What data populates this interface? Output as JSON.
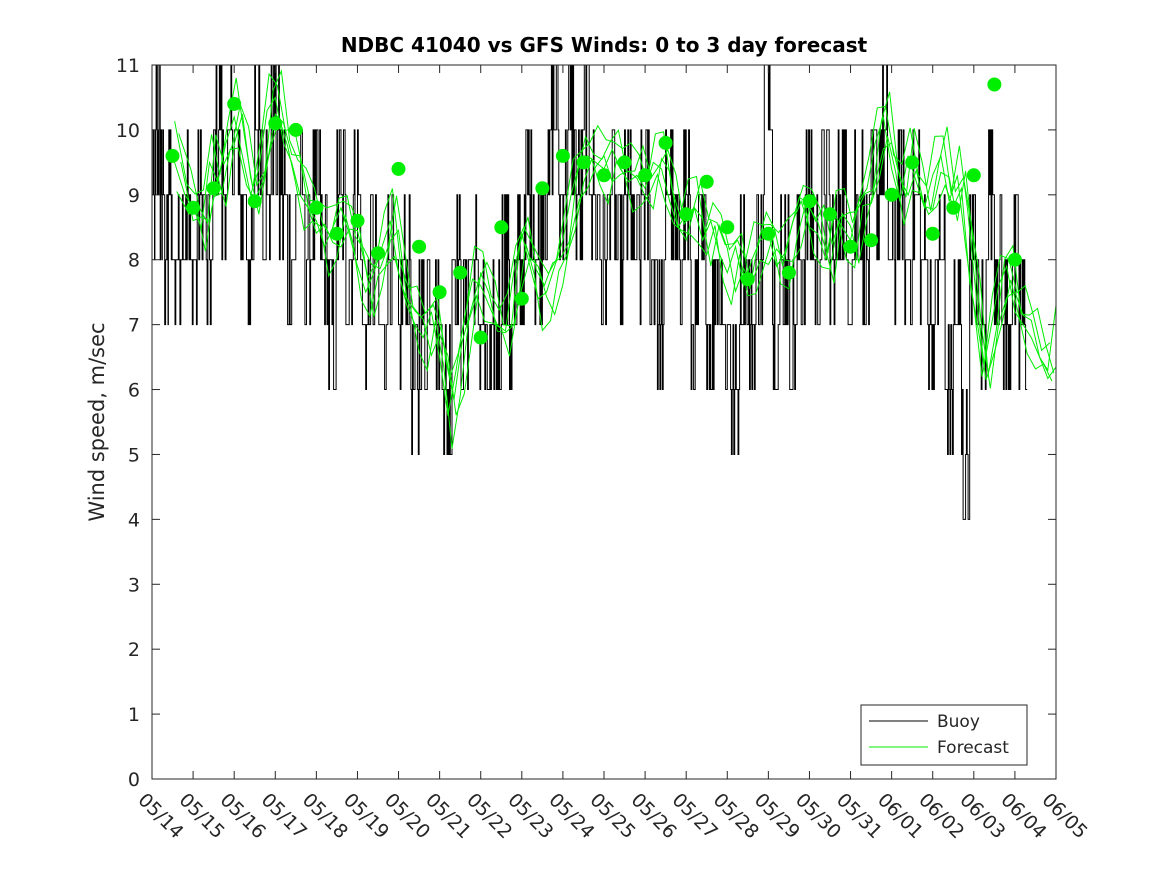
{
  "chart_data": {
    "type": "line",
    "title": "NDBC 41040 vs GFS Winds: 0 to 3 day forecast",
    "xlabel": "",
    "ylabel": "Wind speed, m/sec",
    "xlim": [
      0,
      22
    ],
    "ylim": [
      0,
      11
    ],
    "yticks": [
      0,
      1,
      2,
      3,
      4,
      5,
      6,
      7,
      8,
      9,
      10,
      11
    ],
    "xtick_labels": [
      "05/14",
      "05/15",
      "05/16",
      "05/17",
      "05/18",
      "05/19",
      "05/20",
      "05/21",
      "05/22",
      "05/23",
      "05/24",
      "05/25",
      "05/26",
      "05/27",
      "05/28",
      "05/29",
      "05/30",
      "05/31",
      "06/01",
      "06/02",
      "06/03",
      "06/04",
      "06/05"
    ],
    "legend": {
      "position": "bottom-right",
      "entries": [
        "Buoy",
        "Forecast"
      ]
    },
    "colors": {
      "buoy": "#000000",
      "forecast": "#00ee00",
      "markers": "#00ee00"
    },
    "series": [
      {
        "name": "Buoy",
        "style": "black-step",
        "x": [
          0,
          0.1,
          0.2,
          0.3,
          0.4,
          0.5,
          0.7,
          0.9,
          1.1,
          1.3,
          1.5,
          1.7,
          1.9,
          2.1,
          2.3,
          2.5,
          2.7,
          2.9,
          3.1,
          3.3,
          3.5,
          3.7,
          3.9,
          4.1,
          4.3,
          4.5,
          4.7,
          4.9,
          5.1,
          5.3,
          5.5,
          5.7,
          5.9,
          6.1,
          6.3,
          6.5,
          6.7,
          6.9,
          7.1,
          7.3,
          7.5,
          7.7,
          7.9,
          8.1,
          8.3,
          8.5,
          8.7,
          8.9,
          9.1,
          9.3,
          9.5,
          9.7,
          9.9,
          10.1,
          10.3,
          10.5,
          10.7,
          10.9,
          11.1,
          11.3,
          11.5,
          11.7,
          11.9,
          12.1,
          12.3,
          12.5,
          12.7,
          12.9,
          13.1,
          13.3,
          13.5,
          13.7,
          13.9,
          14.1,
          14.3,
          14.5,
          14.7,
          14.9,
          15.1,
          15.3,
          15.5,
          15.7,
          15.9,
          16.1,
          16.3,
          16.5,
          16.7,
          16.9,
          17.1,
          17.3,
          17.5,
          17.7,
          17.9,
          18.1,
          18.3,
          18.5,
          18.7,
          18.9,
          19.1,
          19.3,
          19.5,
          19.7,
          19.9,
          20.1,
          20.3,
          20.5,
          20.7,
          20.9,
          21.1,
          21.3
        ],
        "values": [
          9,
          10,
          9,
          8,
          9,
          8,
          9,
          8,
          9,
          8,
          10,
          9,
          10,
          9,
          8,
          10,
          9,
          10,
          9,
          8,
          9,
          8,
          9,
          8,
          7,
          9,
          8,
          9,
          7,
          8,
          7,
          8,
          7,
          8,
          6,
          7,
          8,
          7,
          6,
          8,
          7,
          8,
          7,
          6,
          7,
          8,
          7,
          8,
          9,
          8,
          9,
          10,
          9,
          10,
          9,
          10,
          9,
          8,
          9,
          8,
          9,
          8,
          9,
          8,
          7,
          9,
          8,
          9,
          7,
          8,
          7,
          8,
          7,
          6,
          8,
          7,
          8,
          11,
          7,
          8,
          7,
          8,
          9,
          8,
          9,
          8,
          9,
          8,
          9,
          8,
          9,
          10,
          8,
          9,
          8,
          9,
          8,
          7,
          8,
          6,
          7,
          5,
          8,
          7,
          9,
          8,
          7,
          8,
          7,
          7
        ]
      },
      {
        "name": "Forecast",
        "style": "green-lines",
        "x": [
          0.5,
          0.8,
          1.0,
          1.2,
          1.4,
          1.6,
          1.8,
          2.0,
          2.2,
          2.4,
          2.6,
          2.8,
          3.0,
          3.2,
          3.4,
          3.6,
          3.8,
          4.0,
          4.2,
          4.4,
          4.6,
          4.8,
          5.0,
          5.2,
          5.4,
          5.6,
          5.8,
          6.0,
          6.2,
          6.4,
          6.6,
          6.8,
          7.0,
          7.2,
          7.4,
          7.6,
          7.8,
          8.0,
          8.2,
          8.4,
          8.6,
          8.8,
          9.0,
          9.2,
          9.4,
          9.6,
          9.8,
          10.0,
          10.2,
          10.4,
          10.6,
          10.8,
          11.0,
          11.2,
          11.4,
          11.6,
          11.8,
          12.0,
          12.2,
          12.4,
          12.6,
          12.8,
          13.0,
          13.2,
          13.4,
          13.6,
          13.8,
          14.0,
          14.2,
          14.4,
          14.6,
          14.8,
          15.0,
          15.2,
          15.4,
          15.6,
          15.8,
          16.0,
          16.2,
          16.4,
          16.6,
          16.8,
          17.0,
          17.2,
          17.4,
          17.6,
          17.8,
          18.0,
          18.2,
          18.4,
          18.6,
          18.8,
          19.0,
          19.2,
          19.4,
          19.6,
          19.8,
          20.0,
          20.2,
          20.4,
          20.6,
          20.8,
          21.0,
          21.2,
          21.4,
          21.6,
          21.8,
          22.0
        ],
        "values": [
          9.6,
          9.0,
          8.8,
          8.5,
          9.5,
          9.2,
          9.8,
          10.2,
          9.6,
          9.0,
          9.4,
          10.3,
          10.5,
          9.8,
          9.5,
          9.0,
          8.8,
          8.6,
          8.2,
          8.5,
          8.8,
          8.4,
          7.9,
          7.5,
          7.8,
          8.2,
          8.6,
          7.8,
          7.3,
          7.0,
          6.8,
          7.2,
          6.5,
          5.6,
          6.3,
          7.1,
          7.7,
          7.6,
          7.3,
          7.0,
          6.9,
          7.8,
          8.4,
          7.9,
          7.4,
          7.5,
          7.9,
          8.3,
          9.0,
          9.5,
          9.6,
          9.5,
          9.4,
          9.7,
          9.4,
          9.2,
          9.3,
          9.1,
          9.5,
          9.4,
          8.9,
          8.5,
          8.7,
          8.8,
          8.3,
          8.6,
          8.1,
          7.8,
          8.2,
          7.6,
          8.0,
          8.3,
          8.4,
          7.9,
          8.1,
          8.6,
          8.9,
          8.5,
          8.4,
          8.0,
          8.7,
          8.5,
          8.3,
          8.9,
          9.1,
          9.8,
          10.2,
          9.4,
          8.9,
          9.6,
          9.2,
          8.8,
          9.3,
          9.6,
          8.9,
          9.3,
          8.2,
          7.3,
          6.2,
          6.9,
          7.6,
          7.9,
          7.2,
          7.0,
          6.8,
          6.5,
          6.3,
          7.3
        ]
      },
      {
        "name": "",
        "style": "green-markers",
        "x": [
          0.5,
          1.0,
          1.5,
          2.0,
          2.5,
          3.0,
          3.5,
          4.0,
          4.5,
          5.0,
          5.5,
          6.0,
          6.5,
          7.0,
          7.5,
          8.0,
          8.5,
          9.0,
          9.5,
          10.0,
          10.5,
          11.0,
          11.5,
          12.0,
          12.5,
          13.0,
          13.5,
          14.0,
          14.5,
          15.0,
          15.5,
          16.0,
          16.5,
          17.0,
          17.5,
          18.0,
          18.5,
          19.0,
          19.5,
          20.0,
          20.5,
          21.0
        ],
        "values": [
          9.6,
          8.8,
          9.1,
          10.4,
          8.9,
          10.1,
          10.0,
          8.8,
          8.4,
          8.6,
          8.1,
          9.4,
          8.2,
          7.5,
          7.8,
          6.8,
          8.5,
          7.4,
          9.1,
          9.6,
          9.5,
          9.3,
          9.5,
          9.3,
          9.8,
          8.7,
          9.2,
          8.5,
          7.7,
          8.4,
          7.8,
          8.9,
          8.7,
          8.2,
          8.3,
          9.0,
          9.5,
          8.4,
          8.8,
          9.3,
          10.7,
          8.0
        ]
      }
    ]
  }
}
